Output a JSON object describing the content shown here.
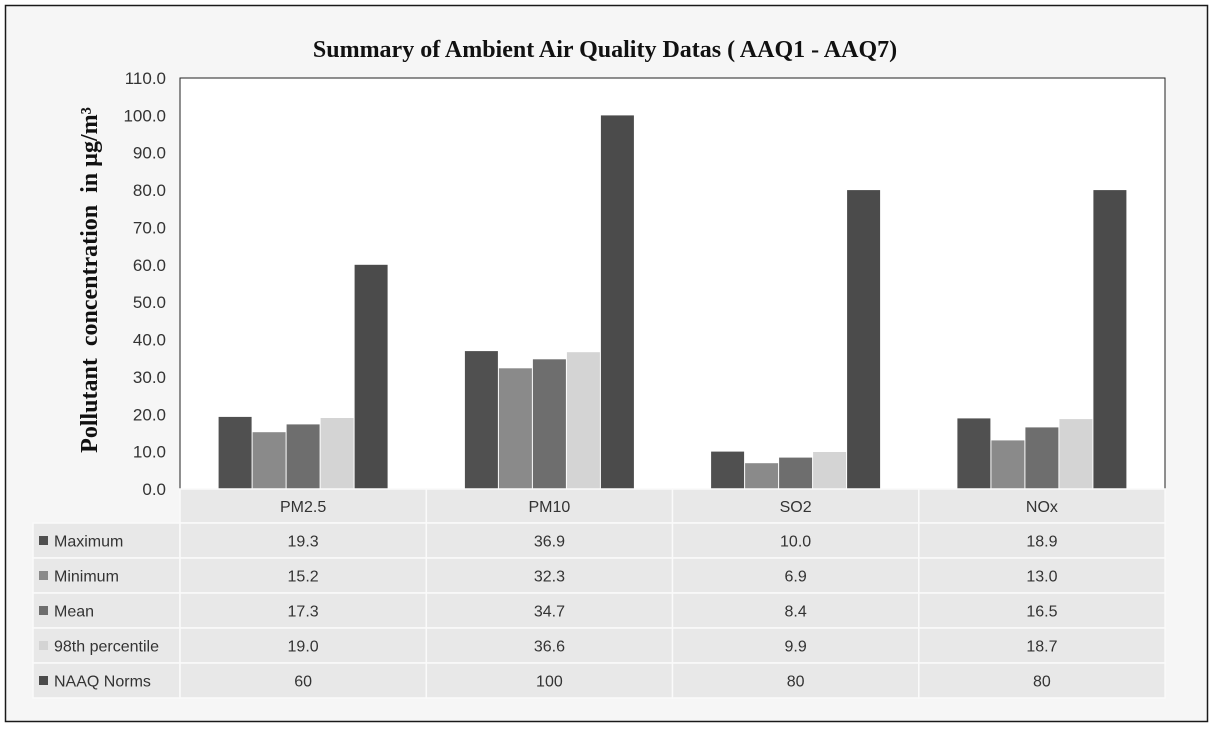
{
  "chart_data": {
    "type": "bar",
    "title": "Summary of Ambient Air Quality Datas ( AAQ1 - AAQ7)",
    "xlabel": "",
    "ylabel": "Pollutant  concentration  in µg/m³",
    "categories": [
      "PM2.5",
      "PM10",
      "SO2",
      "NOx"
    ],
    "ylim": [
      0,
      110
    ],
    "yticks": [
      "0.0",
      "10.0",
      "20.0",
      "30.0",
      "40.0",
      "50.0",
      "60.0",
      "70.0",
      "80.0",
      "90.0",
      "100.0",
      "110.0"
    ],
    "grid": false,
    "legend": "table-left",
    "series": [
      {
        "name": "Maximum",
        "color": "#505050",
        "values": [
          19.3,
          36.9,
          10.0,
          18.9
        ],
        "value_labels": [
          "19.3",
          "36.9",
          "10.0",
          "18.9"
        ]
      },
      {
        "name": "Minimum",
        "color": "#8a8a8a",
        "values": [
          15.2,
          32.3,
          6.9,
          13.0
        ],
        "value_labels": [
          "15.2",
          "32.3",
          "6.9",
          "13.0"
        ]
      },
      {
        "name": "Mean",
        "color": "#6e6e6e",
        "values": [
          17.3,
          34.7,
          8.4,
          16.5
        ],
        "value_labels": [
          "17.3",
          "34.7",
          "8.4",
          "16.5"
        ]
      },
      {
        "name": "98th percentile",
        "color": "#d4d4d4",
        "values": [
          19.0,
          36.6,
          9.9,
          18.7
        ],
        "value_labels": [
          "19.0",
          "36.6",
          "9.9",
          "18.7"
        ]
      },
      {
        "name": "NAAQ Norms",
        "color": "#4b4b4b",
        "values": [
          60,
          100,
          80,
          80
        ],
        "value_labels": [
          "60",
          "100",
          "80",
          "80"
        ]
      }
    ]
  }
}
